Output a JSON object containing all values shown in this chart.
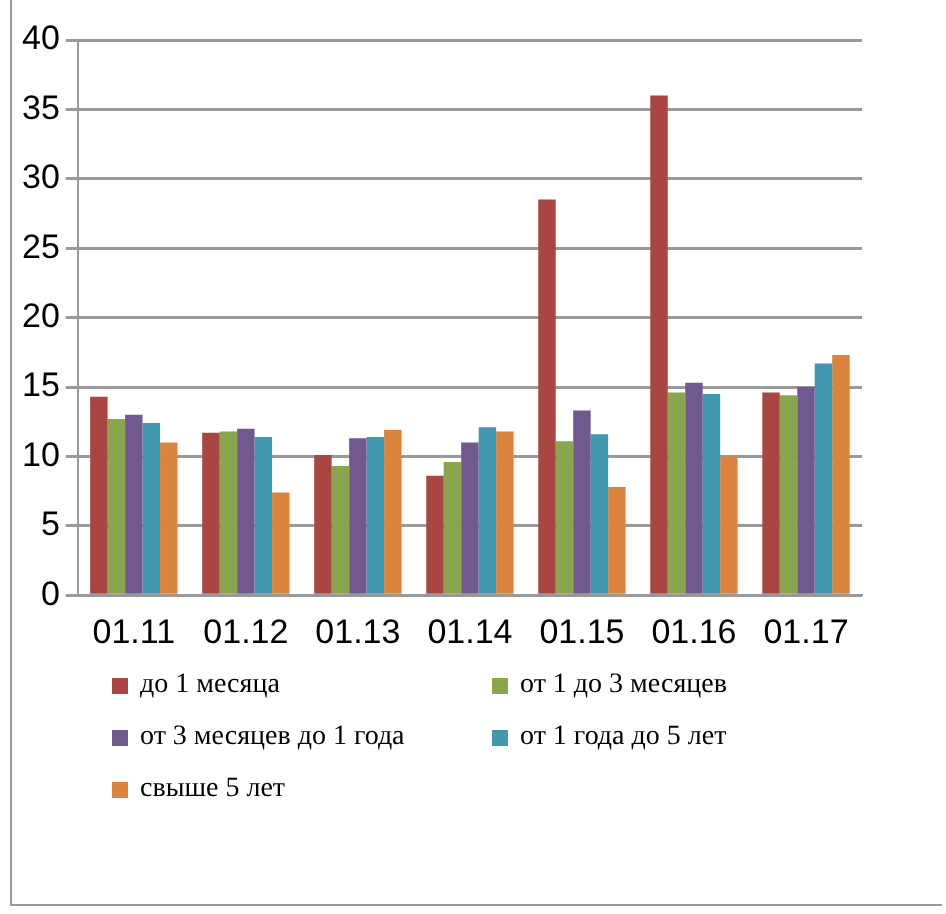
{
  "chart_data": {
    "type": "bar",
    "categories": [
      "01.11",
      "01.12",
      "01.13",
      "01.14",
      "01.15",
      "01.16",
      "01.17"
    ],
    "series": [
      {
        "name": "до 1 месяца",
        "color": "#a94643",
        "values": [
          14.3,
          11.7,
          10.1,
          8.6,
          28.5,
          36.0,
          14.6
        ]
      },
      {
        "name": "от 1 до 3 месяцев",
        "color": "#89a54e",
        "values": [
          12.7,
          11.8,
          9.3,
          9.6,
          11.1,
          14.6,
          14.4
        ]
      },
      {
        "name": "от 3 месяцев до 1 года",
        "color": "#71588f",
        "values": [
          13.0,
          12.0,
          11.3,
          11.0,
          13.3,
          15.3,
          15.0
        ]
      },
      {
        "name": "от 1 года до 5 лет",
        "color": "#4198af",
        "values": [
          12.4,
          11.4,
          11.4,
          12.1,
          11.6,
          14.5,
          16.7
        ]
      },
      {
        "name": "свыше 5 лет",
        "color": "#db843d",
        "values": [
          11.0,
          7.4,
          11.9,
          11.8,
          7.8,
          10.0,
          17.3
        ]
      }
    ],
    "ylim": [
      0,
      40
    ],
    "yticks": [
      0,
      5,
      10,
      15,
      20,
      25,
      30,
      35,
      40
    ],
    "grid": "y",
    "legend": "bottom"
  }
}
